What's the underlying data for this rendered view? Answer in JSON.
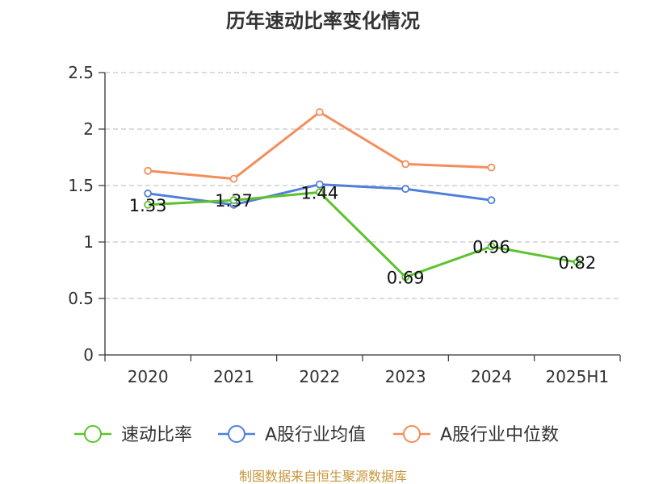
{
  "chart_data": {
    "type": "line",
    "title": "历年速动比率变化情况",
    "categories": [
      "2020",
      "2021",
      "2022",
      "2023",
      "2024",
      "2025H1"
    ],
    "ylim": [
      0,
      2.5
    ],
    "yticks": [
      "0",
      "0.5",
      "1",
      "1.5",
      "2",
      "2.5"
    ],
    "grid": true,
    "legend_position": "bottom",
    "series": [
      {
        "name": "速动比率",
        "color": "#5cc22d",
        "values": [
          1.33,
          1.37,
          1.44,
          0.69,
          0.96,
          0.82
        ],
        "labels": [
          "1.33",
          "1.37",
          "1.44",
          "0.69",
          "0.96",
          "0.82"
        ]
      },
      {
        "name": "A股行业均值",
        "color": "#4f7fd9",
        "values": [
          1.43,
          1.33,
          1.51,
          1.47,
          1.37,
          null
        ]
      },
      {
        "name": "A股行业中位数",
        "color": "#f48d5c",
        "values": [
          1.63,
          1.56,
          2.15,
          1.69,
          1.66,
          null
        ]
      }
    ]
  },
  "source_text": "制图数据来自恒生聚源数据库"
}
